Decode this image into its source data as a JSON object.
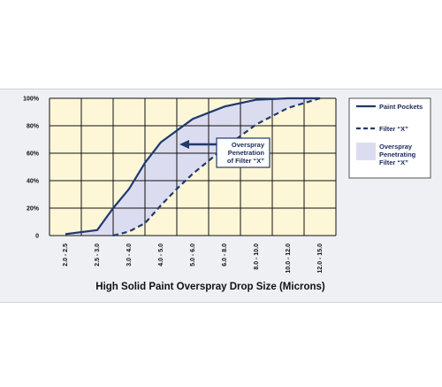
{
  "chart_data": {
    "type": "line",
    "xlabel": "High Solid Paint Overspray Drop Size (Microns)",
    "ylabel": "",
    "categories": [
      "2.0 - 2.5",
      "2.5 - 3.0",
      "3.0 - 4.0",
      "4.0 - 5.0",
      "5.0 - 6.0",
      "6.0 - 8.0",
      "8.0 - 10.0",
      "10.0 - 12.0",
      "12.0 - 15.0"
    ],
    "ylim": [
      0,
      100
    ],
    "yticks": [
      "0",
      "20%",
      "40%",
      "60%",
      "80%",
      "100%"
    ],
    "grid": true,
    "legend_position": "right",
    "series": [
      {
        "name": "Paint Pockets",
        "style": "solid",
        "color": "#1f3a6e",
        "points": [
          [
            0,
            1
          ],
          [
            1,
            4
          ],
          [
            1.5,
            20
          ],
          [
            2,
            34
          ],
          [
            2.5,
            53
          ],
          [
            3,
            68
          ],
          [
            4,
            85
          ],
          [
            5,
            94
          ],
          [
            6,
            99
          ],
          [
            7,
            100
          ],
          [
            8,
            100
          ]
        ]
      },
      {
        "name": "Filter “X”",
        "style": "dashed",
        "color": "#1f3a6e",
        "points": [
          [
            1.5,
            0
          ],
          [
            2,
            3
          ],
          [
            2.5,
            9
          ],
          [
            3,
            22
          ],
          [
            3.5,
            34
          ],
          [
            4,
            45
          ],
          [
            5,
            64
          ],
          [
            6,
            81
          ],
          [
            7,
            93
          ],
          [
            8,
            100
          ]
        ]
      }
    ],
    "shaded_region": {
      "name": "Overspray Penetrating Filter “X”",
      "color": "#dcdcf1"
    },
    "annotation": {
      "lines": [
        "Overspray",
        "Penetration",
        "of Filter “X”"
      ]
    },
    "colors": {
      "plot_background": "#fdf7d8",
      "grid": "#111111",
      "line": "#1f3a6e"
    }
  },
  "legend": {
    "items": [
      {
        "type": "solid",
        "lines": [
          "Paint Pockets"
        ]
      },
      {
        "type": "dashed",
        "lines": [
          "Filter “X”"
        ]
      },
      {
        "type": "area",
        "lines": [
          "Overspray",
          "Penetrating",
          "Filter “X”"
        ]
      }
    ]
  }
}
